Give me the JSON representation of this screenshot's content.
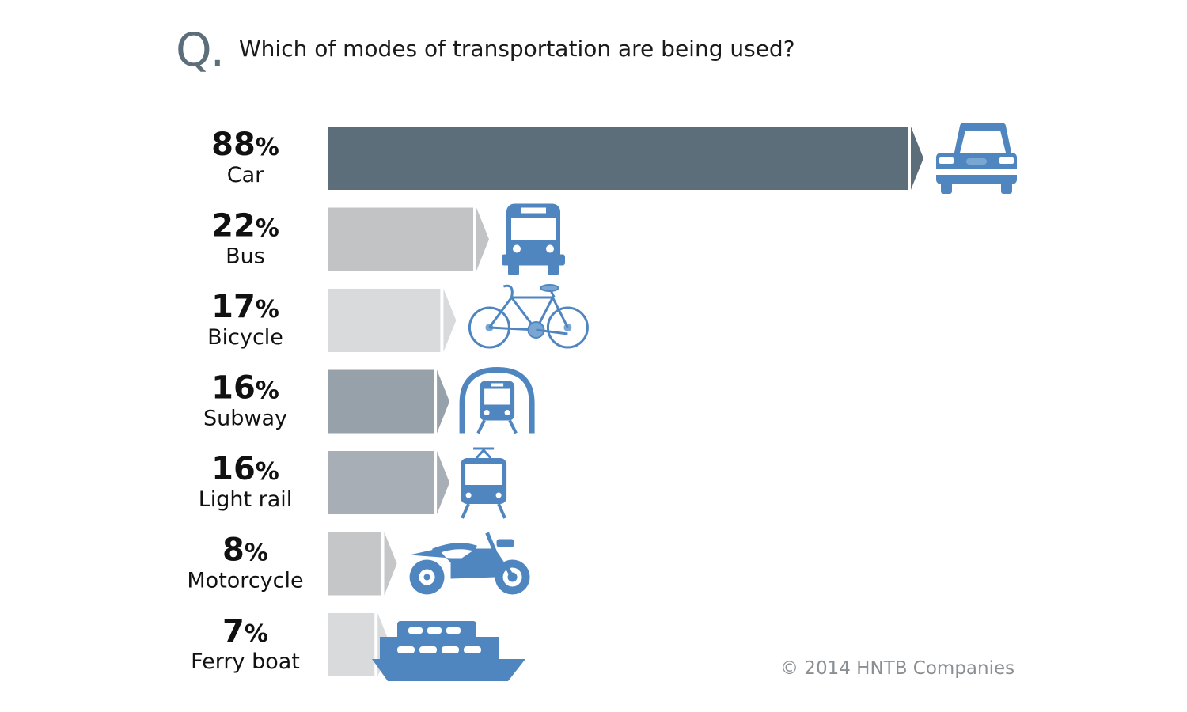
{
  "title_prefix": "Q.",
  "title": "Which of modes of transportation are being used?",
  "copyright": "© 2014 HNTB Companies",
  "colors": {
    "icon": "#4f86c0",
    "title_q": "#5d6e7b"
  },
  "chart_data": {
    "type": "bar",
    "orientation": "horizontal",
    "title": "Which of modes of transportation are being used?",
    "unit": "%",
    "xlim": [
      0,
      100
    ],
    "categories": [
      "Car",
      "Bus",
      "Bicycle",
      "Subway",
      "Light rail",
      "Motorcycle",
      "Ferry boat"
    ],
    "values": [
      88,
      22,
      17,
      16,
      16,
      8,
      7
    ],
    "labels": [
      "88",
      "22",
      "17",
      "16",
      "16",
      "8",
      "7"
    ],
    "icons": [
      "car-icon",
      "bus-icon",
      "bicycle-icon",
      "subway-icon",
      "light-rail-icon",
      "motorcycle-icon",
      "ferry-boat-icon"
    ],
    "bar_colors": [
      "#5d6e7b",
      "#c1c3c5",
      "#d8dadc",
      "#97a1aa",
      "#a8aeb5",
      "#c4c6c8",
      "#d8dadc"
    ]
  }
}
